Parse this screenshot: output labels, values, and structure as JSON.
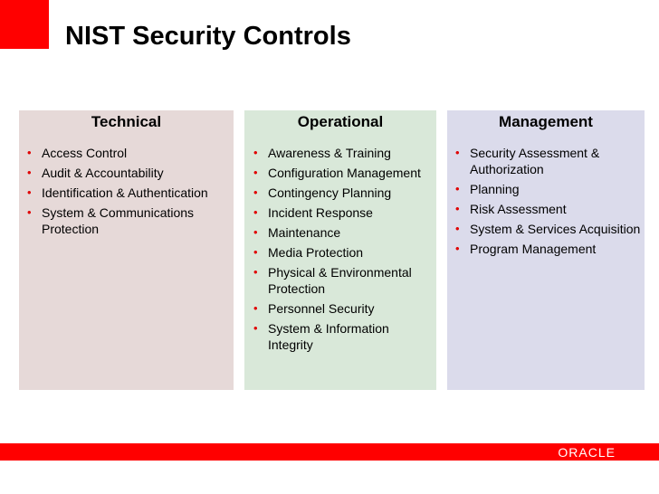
{
  "title": "NIST Security Controls",
  "columns": [
    {
      "heading": "Technical",
      "items": [
        "Access Control",
        "Audit & Accountability",
        "Identification & Authentication",
        "System & Communications Protection"
      ]
    },
    {
      "heading": "Operational",
      "items": [
        "Awareness & Training",
        "Configuration Management",
        "Contingency Planning",
        "Incident Response",
        "Maintenance",
        "Media Protection",
        "Physical & Environmental Protection",
        "Personnel Security",
        "System & Information Integrity"
      ]
    },
    {
      "heading": "Management",
      "items": [
        "Security Assessment & Authorization",
        "Planning",
        "Risk Assessment",
        "System & Services Acquisition",
        "Program Management"
      ]
    }
  ],
  "footer": {
    "logo": "ORACLE"
  },
  "colors": {
    "accent": "#ff0000",
    "technical": "#e6d9d8",
    "operational": "#d9e8d9",
    "management": "#dbdbeb"
  }
}
